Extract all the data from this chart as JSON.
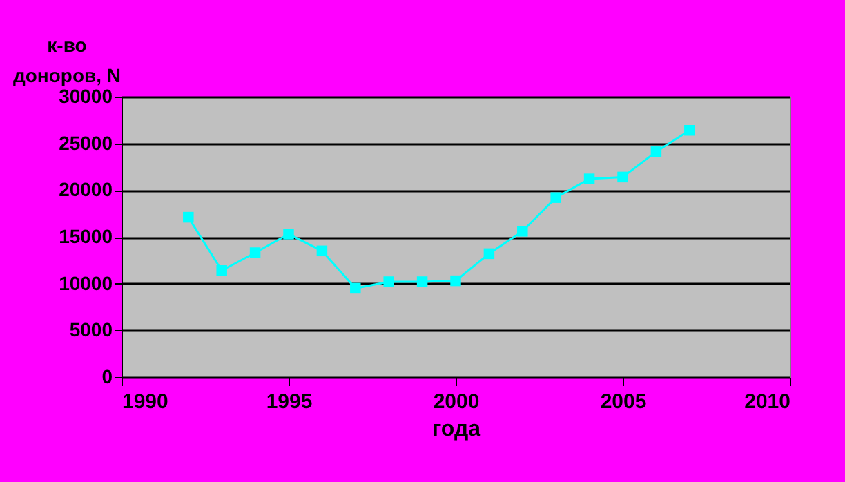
{
  "chart_data": {
    "type": "line",
    "xlabel": "года",
    "ylabel": "к-во доноров, N",
    "x": [
      1992,
      1993,
      1994,
      1995,
      1996,
      1997,
      1998,
      1999,
      2000,
      2001,
      2002,
      2003,
      2004,
      2005,
      2006,
      2007
    ],
    "series": [
      {
        "color": "#00ffff",
        "values": [
          17100,
          11400,
          13300,
          15300,
          13500,
          9500,
          10200,
          10200,
          10300,
          13200,
          15600,
          19200,
          21200,
          21400,
          24100,
          26400
        ]
      }
    ],
    "xlim": [
      1990,
      2010
    ],
    "xticks": [
      1990,
      1995,
      2000,
      2005,
      2010
    ],
    "ylim": [
      0,
      30000
    ],
    "yticks": [
      0,
      5000,
      10000,
      15000,
      20000,
      25000,
      30000
    ],
    "grid": "y",
    "marker": "square",
    "line_style": "solid"
  }
}
